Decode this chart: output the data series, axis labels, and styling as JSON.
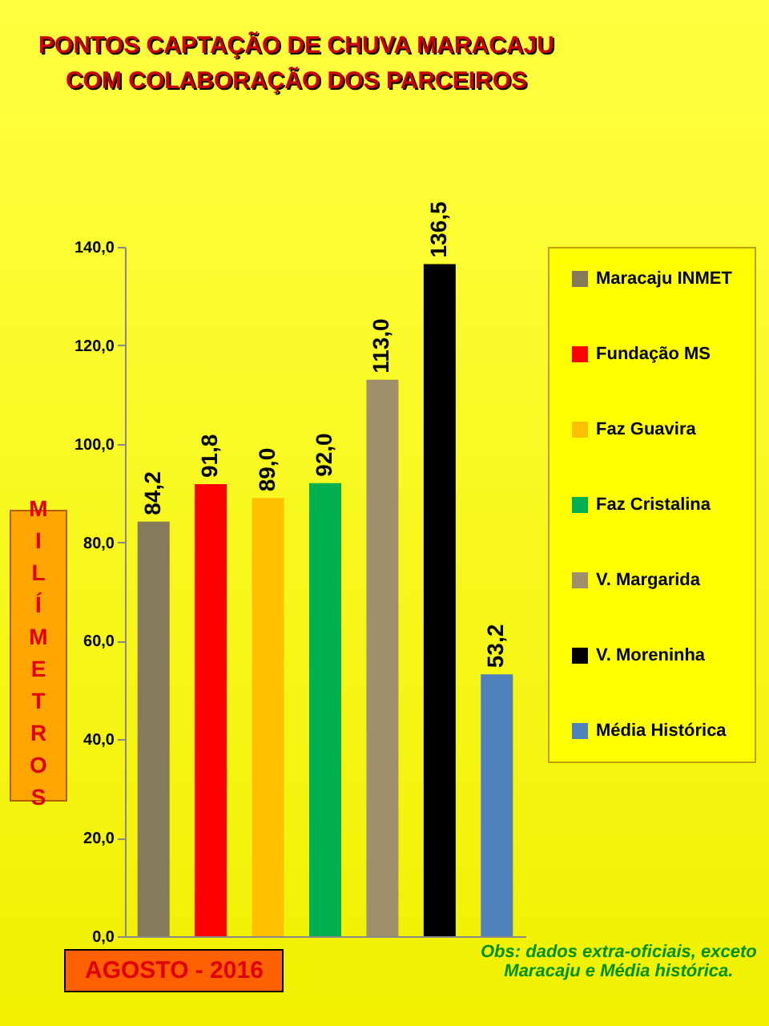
{
  "chart_data": {
    "type": "bar",
    "title": "PONTOS CAPTAÇÃO DE CHUVA  MARACAJU\nCOM COLABORAÇÃO DOS PARCEIROS",
    "ylabel": "MILÍMETROS",
    "categories": [
      null,
      null,
      null,
      null,
      null,
      null,
      null
    ],
    "series": [
      {
        "name": "Maracaju INMET",
        "color": "#857b5c",
        "values": [
          84.2,
          null,
          null,
          null,
          null,
          null,
          null
        ],
        "value_labels": [
          "84,2",
          null,
          null,
          null,
          null,
          null,
          null
        ]
      },
      {
        "name": "Fundação MS",
        "color": "#ff0000",
        "values": [
          null,
          91.8,
          null,
          null,
          null,
          null,
          null
        ],
        "value_labels": [
          null,
          "91,8",
          null,
          null,
          null,
          null,
          null
        ]
      },
      {
        "name": "Faz Guavira",
        "color": "#ffc000",
        "values": [
          null,
          null,
          89.0,
          null,
          null,
          null,
          null
        ],
        "value_labels": [
          null,
          null,
          "89,0",
          null,
          null,
          null,
          null
        ]
      },
      {
        "name": "Faz Cristalina",
        "color": "#00b050",
        "values": [
          null,
          null,
          null,
          92.0,
          null,
          null,
          null
        ],
        "value_labels": [
          null,
          null,
          null,
          "92,0",
          null,
          null,
          null
        ]
      },
      {
        "name": "V. Margarida",
        "color": "#a08f6c",
        "values": [
          null,
          null,
          null,
          null,
          113.0,
          null,
          null
        ],
        "value_labels": [
          null,
          null,
          null,
          null,
          "113,0",
          null,
          null
        ]
      },
      {
        "name": "V. Moreninha",
        "color": "#000000",
        "values": [
          null,
          null,
          null,
          null,
          null,
          136.5,
          null
        ],
        "value_labels": [
          null,
          null,
          null,
          null,
          null,
          "136,5",
          null
        ]
      },
      {
        "name": "Média Histórica",
        "color": "#4f81bd",
        "values": [
          null,
          null,
          null,
          null,
          null,
          null,
          53.2
        ],
        "value_labels": [
          null,
          null,
          null,
          null,
          null,
          null,
          "53,2"
        ]
      }
    ],
    "ylim": [
      0,
      140
    ],
    "yticks": [
      {
        "value": 0,
        "label": "0,0"
      },
      {
        "value": 20,
        "label": "20,0"
      },
      {
        "value": 40,
        "label": "40,0"
      },
      {
        "value": 60,
        "label": "60,0"
      },
      {
        "value": 80,
        "label": "80,0"
      },
      {
        "value": 100,
        "label": "100,0"
      },
      {
        "value": 120,
        "label": "120,0"
      },
      {
        "value": 140,
        "label": "140,0"
      }
    ],
    "tick_labels": "y",
    "legend": "right",
    "annotations": [
      "AGOSTO - 2016",
      "Obs: dados extra-oficiais, exceto\nMaracaju e Média histórica."
    ]
  }
}
